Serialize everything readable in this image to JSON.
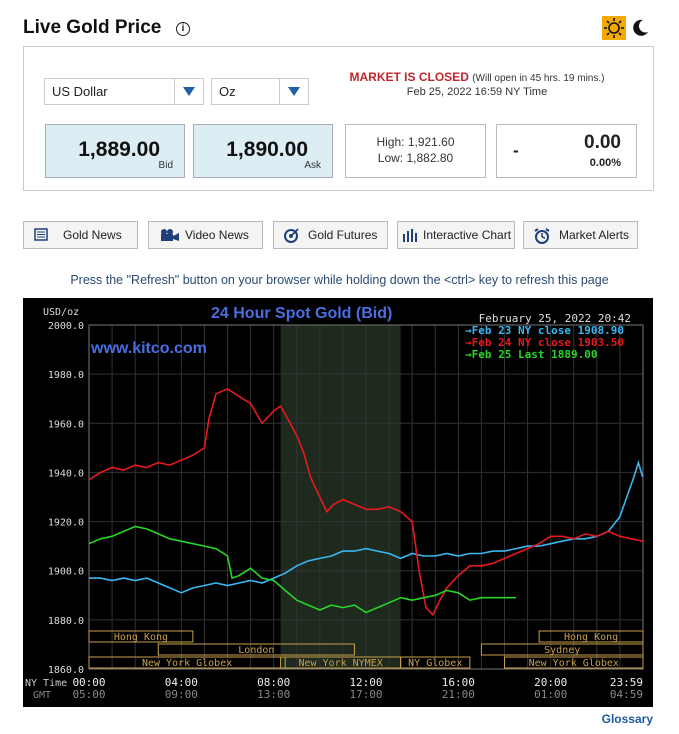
{
  "header": {
    "title": "Live Gold Price",
    "info_glyph": "i"
  },
  "controls": {
    "currency": "US Dollar",
    "unit": "Oz"
  },
  "status": {
    "closed_label": "MARKET IS CLOSED",
    "reopen_note": "(Will open in 45 hrs. 19 mins.)",
    "datetime": "Feb 25, 2022 16:59 NY Time"
  },
  "prices": {
    "bid": "1,889.00",
    "bid_label": "Bid",
    "ask": "1,890.00",
    "ask_label": "Ask",
    "high": "High: 1,921.60",
    "low": "Low: 1,882.80",
    "change_sign": "-",
    "change": "0.00",
    "change_pct": "0.00%"
  },
  "nav_buttons": [
    {
      "label": "Gold News",
      "icon": "newspaper-icon"
    },
    {
      "label": "Video News",
      "icon": "video-camera-icon"
    },
    {
      "label": "Gold Futures",
      "icon": "target-icon"
    },
    {
      "label": "Interactive Chart",
      "icon": "bar-chart-icon"
    },
    {
      "label": "Market Alerts",
      "icon": "alarm-clock-icon"
    }
  ],
  "refresh_tip": "Press the \"Refresh\" button on your browser while holding down the <ctrl> key to refresh this page",
  "glossary": "Glossary",
  "colors": {
    "accent_red": "#c0272d",
    "price_box_bg": "#dcedf4",
    "chart_bg": "#000000",
    "title_blue": "#4a6ee0"
  },
  "chart_data": {
    "type": "line",
    "title": "24 Hour Spot Gold (Bid)",
    "watermark": "www.kitco.com",
    "date_label": "February 25, 2022 20:42",
    "ylabel": "USD/oz",
    "ylim": [
      1860,
      2000
    ],
    "yticks": [
      "2000.0",
      "1980.0",
      "1960.0",
      "1940.0",
      "1920.0",
      "1900.0",
      "1880.0",
      "1860.0"
    ],
    "x_row_labels": [
      "NY Time",
      "GMT"
    ],
    "x_ny": [
      "00:00",
      "04:00",
      "08:00",
      "12:00",
      "16:00",
      "20:00",
      "23:59"
    ],
    "x_gmt": [
      "05:00",
      "09:00",
      "13:00",
      "17:00",
      "21:00",
      "01:00",
      "04:59"
    ],
    "xlim": [
      0,
      24
    ],
    "grid": true,
    "legend_position": "top-right",
    "shaded_session_hours": [
      8.3,
      13.5
    ],
    "session_bands": [
      {
        "label": "Hong Kong",
        "start": 0,
        "end": 4.5
      },
      {
        "label": "London",
        "start": 3,
        "end": 11.5
      },
      {
        "label": "New York Globex",
        "start": 0,
        "end": 8.5
      },
      {
        "label": "New York NYMEX",
        "start": 8.3,
        "end": 13.5
      },
      {
        "label": "NY Globex",
        "start": 13.5,
        "end": 16.5
      },
      {
        "label": "Hong Kong",
        "start": 19.5,
        "end": 24
      },
      {
        "label": "Sydney",
        "start": 17,
        "end": 24
      },
      {
        "label": "New York Globex",
        "start": 18,
        "end": 24
      }
    ],
    "series": [
      {
        "name": "Feb 23 NY close 1908.90",
        "color": "#39b7f0",
        "x": [
          0,
          0.5,
          1,
          1.5,
          2,
          2.5,
          3,
          3.5,
          4,
          4.5,
          5,
          5.5,
          6,
          6.5,
          7,
          7.5,
          8,
          8.5,
          9,
          9.5,
          10,
          10.5,
          11,
          11.5,
          12,
          12.5,
          13,
          13.5,
          14,
          14.5,
          15,
          15.5,
          16,
          16.5,
          17,
          17.5,
          18,
          18.5,
          19,
          19.5,
          20,
          20.5,
          21,
          21.5,
          22,
          22.5,
          23,
          23.3,
          23.6,
          23.8,
          23.99
        ],
        "y": [
          1897,
          1897,
          1896,
          1897,
          1896,
          1897,
          1895,
          1893,
          1891,
          1893,
          1894,
          1895,
          1894,
          1895,
          1896,
          1895,
          1897,
          1899,
          1902,
          1904,
          1905,
          1906,
          1908,
          1908,
          1909,
          1908,
          1907,
          1905,
          1907,
          1906,
          1906,
          1907,
          1906,
          1907,
          1907,
          1908,
          1908,
          1909,
          1910,
          1910,
          1911,
          1912,
          1913,
          1913,
          1914,
          1916,
          1922,
          1930,
          1938,
          1944,
          1938
        ]
      },
      {
        "name": "Feb 24 NY close 1903.50",
        "color": "#e8191c",
        "x": [
          0,
          0.5,
          1,
          1.5,
          2,
          2.5,
          3,
          3.5,
          4,
          4.5,
          5,
          5.2,
          5.5,
          6,
          6.5,
          7,
          7.5,
          8,
          8.3,
          8.6,
          9,
          9.3,
          9.6,
          10,
          10.3,
          10.6,
          11,
          11.5,
          12,
          12.5,
          13,
          13.5,
          14,
          14.3,
          14.6,
          14.9,
          15.2,
          15.5,
          16,
          16.5,
          17,
          17.5,
          18,
          18.5,
          19,
          19.5,
          20,
          20.5,
          21,
          21.5,
          22,
          22.5,
          23,
          23.5,
          23.99
        ],
        "y": [
          1937,
          1940,
          1942,
          1941,
          1943,
          1942,
          1944,
          1943,
          1945,
          1947,
          1950,
          1962,
          1972,
          1974,
          1971,
          1968,
          1960,
          1965,
          1967,
          1962,
          1955,
          1948,
          1938,
          1930,
          1924,
          1927,
          1929,
          1927,
          1925,
          1925,
          1926,
          1924,
          1920,
          1900,
          1885,
          1882,
          1888,
          1893,
          1898,
          1902,
          1902,
          1903,
          1905,
          1907,
          1909,
          1911,
          1914,
          1914,
          1913,
          1915,
          1914,
          1916,
          1914,
          1913,
          1912
        ]
      },
      {
        "name": "Feb 25 Last 1889.00",
        "color": "#28d428",
        "x": [
          0,
          0.5,
          1,
          1.5,
          2,
          2.5,
          3,
          3.5,
          4,
          4.5,
          5,
          5.5,
          6,
          6.2,
          6.5,
          7,
          7.5,
          8,
          8.5,
          9,
          9.5,
          10,
          10.5,
          11,
          11.5,
          12,
          12.5,
          13,
          13.5,
          14,
          14.5,
          15,
          15.5,
          16,
          16.5,
          17,
          17.5,
          18,
          18.5
        ],
        "y": [
          1911,
          1913,
          1914,
          1916,
          1918,
          1917,
          1915,
          1913,
          1912,
          1911,
          1910,
          1909,
          1906,
          1897,
          1898,
          1901,
          1897,
          1896,
          1892,
          1888,
          1886,
          1884,
          1886,
          1885,
          1886,
          1883,
          1885,
          1887,
          1889,
          1888,
          1889,
          1890,
          1892,
          1891,
          1888,
          1889,
          1889,
          1889,
          1889
        ]
      }
    ]
  }
}
